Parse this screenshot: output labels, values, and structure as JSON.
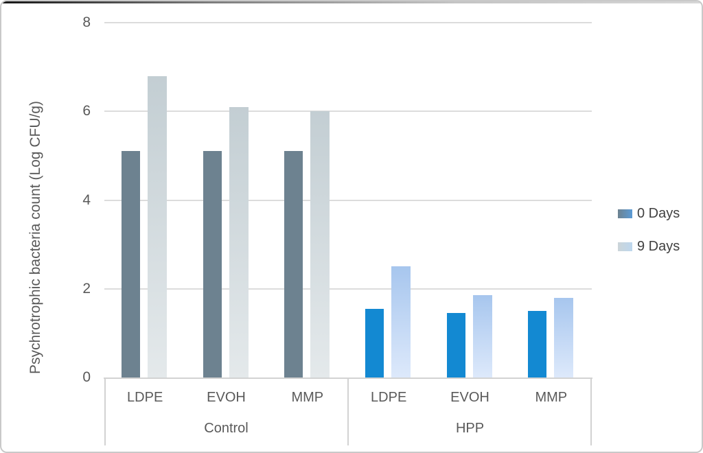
{
  "chart_data": {
    "type": "bar",
    "title": "",
    "ylabel": "Psychrotrophic bacteria count (Log CFU/g)",
    "xlabel": "",
    "ylim": [
      0,
      8
    ],
    "y_ticks": [
      0,
      2,
      4,
      6,
      8
    ],
    "grid": true,
    "legend_position": "right",
    "groups": [
      {
        "label": "Control",
        "categories": [
          "LDPE",
          "EVOH",
          "MMP"
        ]
      },
      {
        "label": "HPP",
        "categories": [
          "LDPE",
          "EVOH",
          "MMP"
        ]
      }
    ],
    "series": [
      {
        "name": "0 Days",
        "values": [
          5.1,
          5.1,
          5.1,
          1.55,
          1.45,
          1.5
        ]
      },
      {
        "name": "9 Days",
        "values": [
          6.8,
          6.1,
          6.0,
          2.5,
          1.85,
          1.8
        ]
      }
    ],
    "colors": {
      "s0_control": "#6d8290",
      "s0_hpp": "#1389d2",
      "s1_control_top": "#c3ced3",
      "s1_control_bottom": "#e4e9eb",
      "s1_hpp_top": "#a7c6ee",
      "s1_hpp_bottom": "#dde9fb",
      "legend_s0_left": "#6d8290",
      "legend_s0_right": "#5b9bd5",
      "legend_s1_left": "#ccd5d9",
      "legend_s1_right": "#bdd7ee",
      "gridline": "#dcdcdc",
      "axis_line": "#d2d2d2",
      "text": "#595959"
    }
  }
}
